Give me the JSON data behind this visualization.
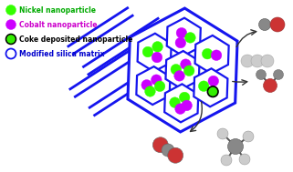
{
  "bg_color": "#ffffff",
  "legend_items": [
    {
      "label": "Nickel nanoparticle",
      "color": "#00ff00",
      "text_color": "#00aa00"
    },
    {
      "label": "Cobalt nanoparticle",
      "color": "#cc00ff",
      "text_color": "#cc00cc"
    },
    {
      "label": "Coke deposited nanoparticle",
      "color": "#00cc00",
      "text_color": "#000000",
      "coke": true
    },
    {
      "label": "Modified silica matrix",
      "color": "#ffffff",
      "text_color": "#0000cc",
      "empty": true
    }
  ],
  "legend_colors": {
    "nickel": "#33ff00",
    "cobalt": "#cc00ff",
    "coke_fill": "#33ee00",
    "silica_edge": "#1515ee"
  },
  "hex_color": "#1515ee",
  "figsize": [
    3.21,
    1.89
  ],
  "dpi": 100
}
